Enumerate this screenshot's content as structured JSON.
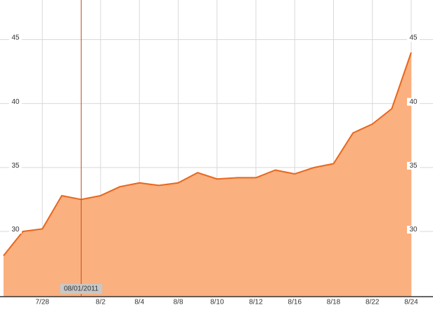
{
  "chart_data": {
    "type": "area",
    "categories": [
      null,
      null,
      "7/28",
      null,
      "08/01/2011",
      "8/2",
      null,
      "8/4",
      null,
      "8/8",
      null,
      "8/10",
      null,
      "8/12",
      null,
      "8/16",
      null,
      "8/18",
      null,
      "8/22",
      null,
      "8/24"
    ],
    "values": [
      28.1,
      30.0,
      30.2,
      32.8,
      32.5,
      32.8,
      33.5,
      33.8,
      33.6,
      33.8,
      34.6,
      34.1,
      34.2,
      34.2,
      34.8,
      34.5,
      35.0,
      35.3,
      37.7,
      38.4,
      39.6,
      44.0
    ],
    "color": "#e8661c",
    "fill": "#fbb07f",
    "ylim": [
      24.9,
      48.1
    ],
    "yticks": [
      30,
      35,
      40,
      45
    ],
    "grid": true,
    "crosshair": "08/01/2011"
  }
}
